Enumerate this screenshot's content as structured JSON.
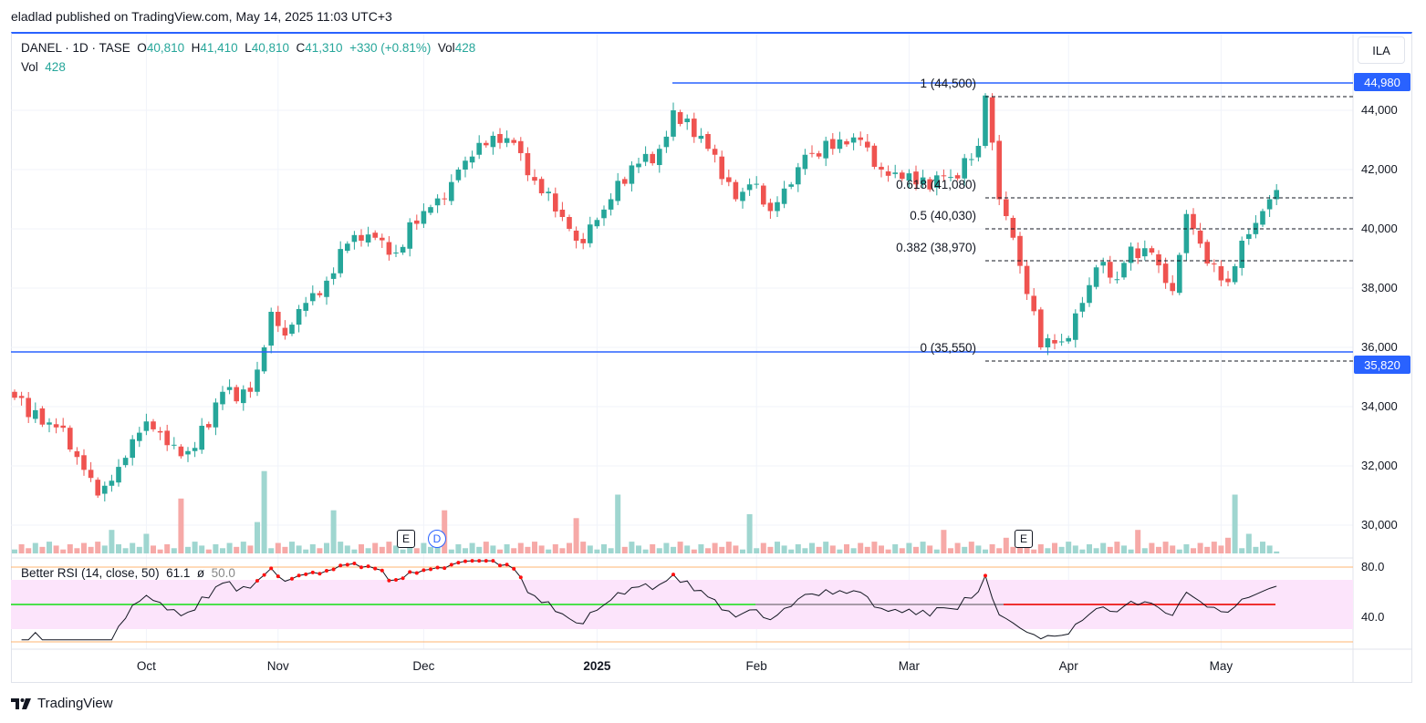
{
  "published": "eladlad published on TradingView.com, May 14, 2025 11:03 UTC+3",
  "legend": {
    "symbol": "DANEL · 1D · TASE",
    "o_label": "O",
    "o": "40,810",
    "h_label": "H",
    "h": "41,410",
    "l_label": "L",
    "l": "40,810",
    "c_label": "C",
    "c": "41,310",
    "change": "+330 (+0.81%)",
    "vol_label": "Vol",
    "vol": "428"
  },
  "vol_pane": {
    "label": "Vol",
    "value": "428"
  },
  "currency": "ILA",
  "price_labels": {
    "high": "44,980",
    "low": "35,820"
  },
  "rsi": {
    "label": "Better RSI (14, close, 50)",
    "value": "61.1",
    "sym": "ø",
    "avg": "50.0",
    "ticks": [
      "80.0",
      "40.0"
    ]
  },
  "markers": [
    {
      "t": "E",
      "name": "earnings-marker"
    },
    {
      "t": "D",
      "name": "dividend-marker"
    },
    {
      "t": "E",
      "name": "earnings-marker"
    }
  ],
  "footer": "TradingView",
  "chart_data": {
    "type": "candlestick",
    "ylim": [
      29000,
      45500
    ],
    "y_ticks": [
      "44,000",
      "42,000",
      "40,000",
      "38,000",
      "36,000",
      "34,000",
      "32,000",
      "30,000"
    ],
    "y_tick_values": [
      44000,
      42000,
      40000,
      38000,
      36000,
      34000,
      32000,
      30000
    ],
    "x_ticks": [
      {
        "label": "Oct",
        "i": 19
      },
      {
        "label": "Nov",
        "i": 38
      },
      {
        "label": "Dec",
        "i": 59
      },
      {
        "label": "2025",
        "i": 84,
        "bold": true
      },
      {
        "label": "Feb",
        "i": 107
      },
      {
        "label": "Mar",
        "i": 129
      },
      {
        "label": "Apr",
        "i": 152
      },
      {
        "label": "May",
        "i": 174
      }
    ],
    "close_keyframes": [
      [
        0,
        34300
      ],
      [
        6,
        33300
      ],
      [
        9,
        32300
      ],
      [
        12,
        31000
      ],
      [
        14,
        31500
      ],
      [
        17,
        32900
      ],
      [
        19,
        33500
      ],
      [
        22,
        32700
      ],
      [
        25,
        32500
      ],
      [
        28,
        33300
      ],
      [
        30,
        34500
      ],
      [
        34,
        34500
      ],
      [
        36,
        36000
      ],
      [
        37,
        37200
      ],
      [
        39,
        36400
      ],
      [
        42,
        37500
      ],
      [
        46,
        38500
      ],
      [
        48,
        39500
      ],
      [
        52,
        39700
      ],
      [
        55,
        39200
      ],
      [
        59,
        40600
      ],
      [
        62,
        41000
      ],
      [
        64,
        42000
      ],
      [
        67,
        42900
      ],
      [
        72,
        42900
      ],
      [
        76,
        41200
      ],
      [
        79,
        40400
      ],
      [
        81,
        39600
      ],
      [
        84,
        40300
      ],
      [
        86,
        41000
      ],
      [
        90,
        42200
      ],
      [
        93,
        42700
      ],
      [
        95,
        44000
      ],
      [
        98,
        43100
      ],
      [
        101,
        42500
      ],
      [
        104,
        41000
      ],
      [
        106,
        41500
      ],
      [
        109,
        40600
      ],
      [
        112,
        41500
      ],
      [
        114,
        42500
      ],
      [
        118,
        42700
      ],
      [
        122,
        43000
      ],
      [
        125,
        42000
      ],
      [
        127,
        41900
      ],
      [
        130,
        41500
      ],
      [
        134,
        41800
      ],
      [
        136,
        41700
      ],
      [
        139,
        42800
      ],
      [
        140,
        44500
      ],
      [
        142,
        41000
      ],
      [
        144,
        39700
      ],
      [
        146,
        37800
      ],
      [
        148,
        36000
      ],
      [
        151,
        36200
      ],
      [
        154,
        37500
      ],
      [
        156,
        38700
      ],
      [
        159,
        38300
      ],
      [
        161,
        39400
      ],
      [
        164,
        39200
      ],
      [
        167,
        37900
      ],
      [
        169,
        40500
      ],
      [
        171,
        39500
      ],
      [
        173,
        38800
      ],
      [
        175,
        38200
      ],
      [
        177,
        39600
      ],
      [
        179,
        40200
      ],
      [
        181,
        41000
      ],
      [
        182,
        41310
      ]
    ],
    "volume_spikes": [
      [
        14,
        6
      ],
      [
        19,
        5
      ],
      [
        24,
        14
      ],
      [
        35,
        8
      ],
      [
        36,
        21
      ],
      [
        46,
        11
      ],
      [
        57,
        5
      ],
      [
        62,
        11
      ],
      [
        81,
        9
      ],
      [
        87,
        15
      ],
      [
        106,
        10
      ],
      [
        134,
        6
      ],
      [
        143,
        4
      ],
      [
        162,
        6
      ],
      [
        175,
        4
      ],
      [
        176,
        15
      ],
      [
        178,
        5
      ]
    ],
    "last_volume": 428,
    "lines": {
      "resistance": 44980,
      "support": 35820
    },
    "fib": [
      {
        "label": "1 (44,500)",
        "v": 44500
      },
      {
        "label": "0.618 (41,080)",
        "v": 41080
      },
      {
        "label": "0.5 (40,030)",
        "v": 40030
      },
      {
        "label": "0.382 (38,970)",
        "v": 38970
      },
      {
        "label": "0 (35,550)",
        "v": 35550
      }
    ],
    "colors": {
      "up": "#26a69a",
      "down": "#ef5350",
      "line": "#2962ff"
    }
  }
}
